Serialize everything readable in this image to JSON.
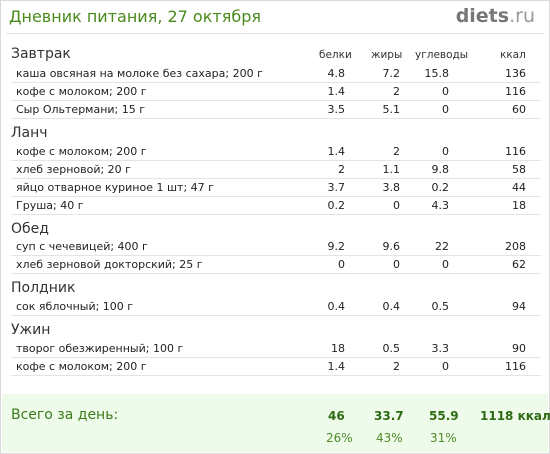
{
  "header": {
    "title": "Дневник питания, 27 октября",
    "logo_main": "diets",
    "logo_tld": ".ru"
  },
  "columns": [
    "белки",
    "жиры",
    "углеводы",
    "ккал"
  ],
  "meals": [
    {
      "name": "Завтрак",
      "items": [
        {
          "name": "каша  овсяная на молоке без сахара; 200 г",
          "protein": "4.8",
          "fat": "7.2",
          "carbs": "15.8",
          "kcal": "136"
        },
        {
          "name": "кофе  с молоком; 200 г",
          "protein": "1.4",
          "fat": "2",
          "carbs": "0",
          "kcal": "116"
        },
        {
          "name": "Сыр  Ольтермани; 15 г",
          "protein": "3.5",
          "fat": "5.1",
          "carbs": "0",
          "kcal": "60"
        }
      ]
    },
    {
      "name": "Ланч",
      "items": [
        {
          "name": "кофе  с молоком; 200 г",
          "protein": "1.4",
          "fat": "2",
          "carbs": "0",
          "kcal": "116"
        },
        {
          "name": "хлеб зерновой; 20 г",
          "protein": "2",
          "fat": "1.1",
          "carbs": "9.8",
          "kcal": "58"
        },
        {
          "name": "яйцо отварное куриное 1 шт; 47 г",
          "protein": "3.7",
          "fat": "3.8",
          "carbs": "0.2",
          "kcal": "44"
        },
        {
          "name": "Груша; 40 г",
          "protein": "0.2",
          "fat": "0",
          "carbs": "4.3",
          "kcal": "18"
        }
      ]
    },
    {
      "name": "Обед",
      "items": [
        {
          "name": "суп  с  чечевицей; 400 г",
          "protein": "9.2",
          "fat": "9.6",
          "carbs": "22",
          "kcal": "208"
        },
        {
          "name": "хлеб зерновой докторский; 25 г",
          "protein": "0",
          "fat": "0",
          "carbs": "0",
          "kcal": "62"
        }
      ]
    },
    {
      "name": "Полдник",
      "items": [
        {
          "name": "сок яблочный; 100 г",
          "protein": "0.4",
          "fat": "0.4",
          "carbs": "0.5",
          "kcal": "94"
        }
      ]
    },
    {
      "name": "Ужин",
      "items": [
        {
          "name": "творог обезжиренный; 100 г",
          "protein": "18",
          "fat": "0.5",
          "carbs": "3.3",
          "kcal": "90"
        },
        {
          "name": "кофе  с молоком; 200 г",
          "protein": "1.4",
          "fat": "2",
          "carbs": "0",
          "kcal": "116"
        }
      ]
    }
  ],
  "total": {
    "label": "Всего за день:",
    "protein": "46",
    "fat": "33.7",
    "carbs": "55.9",
    "kcal": "1118 ккал",
    "protein_pct": "26%",
    "fat_pct": "43%",
    "carbs_pct": "31%"
  }
}
